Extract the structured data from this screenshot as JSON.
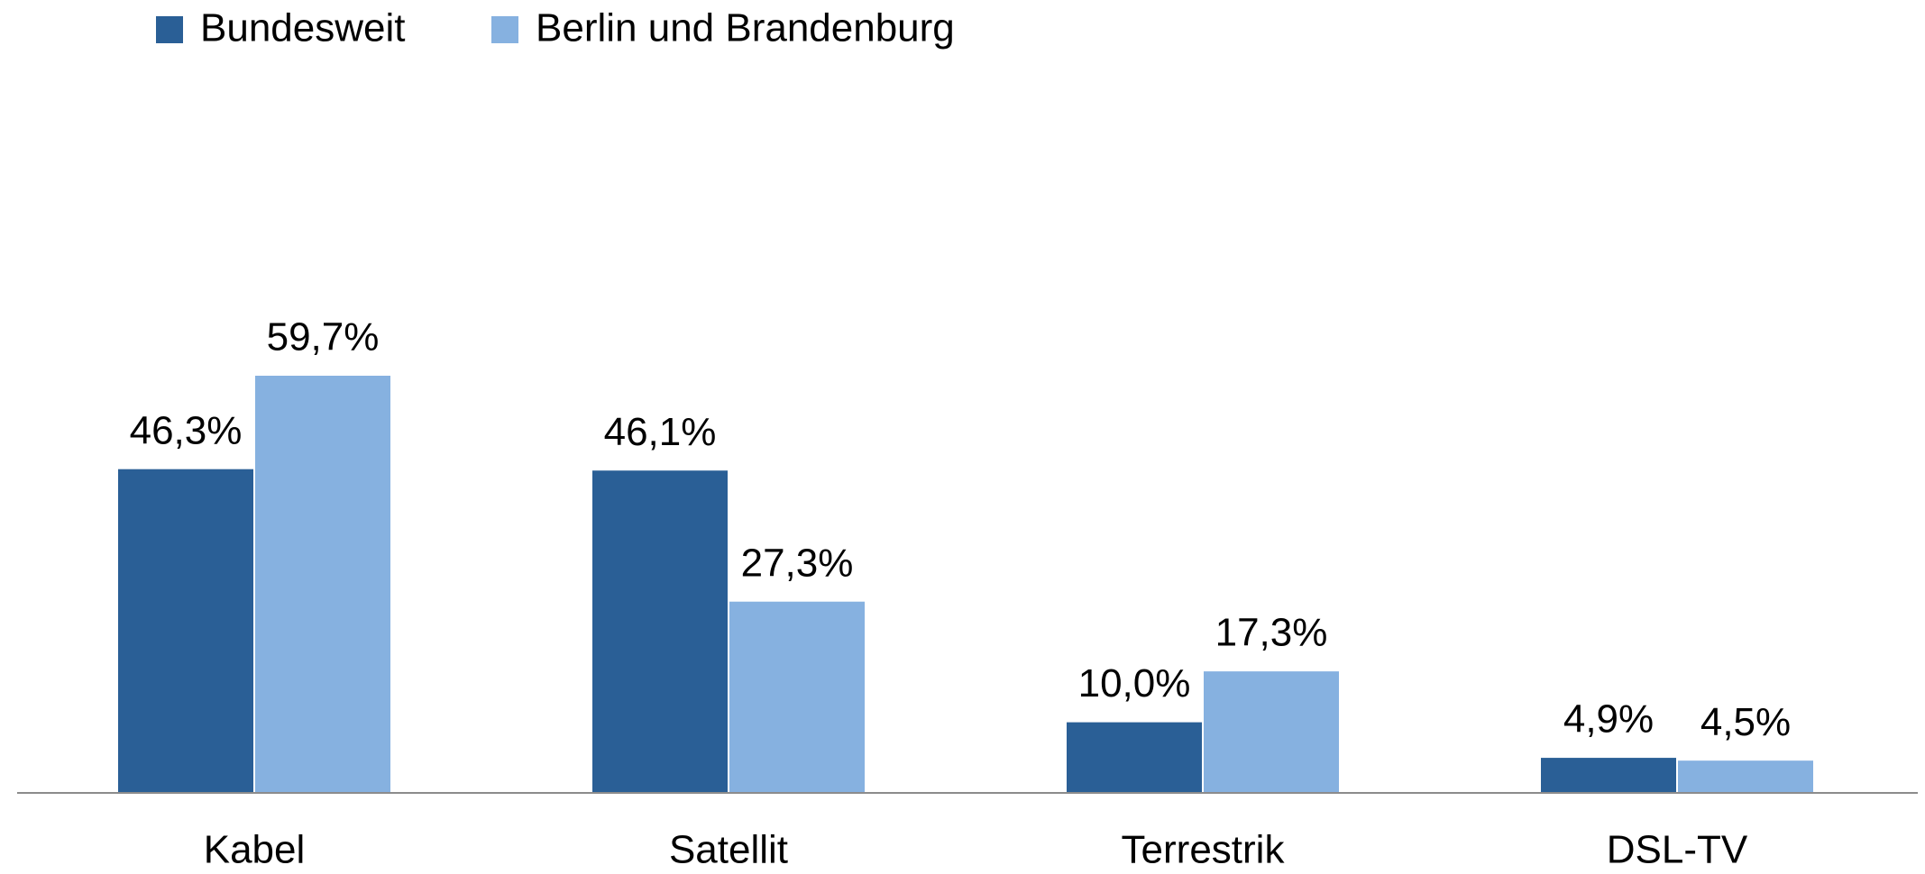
{
  "chart_data": {
    "type": "bar",
    "categories": [
      "Kabel",
      "Satellit",
      "Terrestrik",
      "DSL-TV"
    ],
    "series": [
      {
        "name": "Bundesweit",
        "color": "#2a5f96",
        "values": [
          46.3,
          46.1,
          10.0,
          4.9
        ],
        "value_labels": [
          "46,3%",
          "46,1%",
          "10,0%",
          "4,9%"
        ]
      },
      {
        "name": "Berlin und Brandenburg",
        "color": "#86b1e0",
        "values": [
          59.7,
          27.3,
          17.3,
          4.5
        ],
        "value_labels": [
          "59,7%",
          "27,3%",
          "17,3%",
          "4,5%"
        ]
      }
    ],
    "legend": "top-left"
  }
}
